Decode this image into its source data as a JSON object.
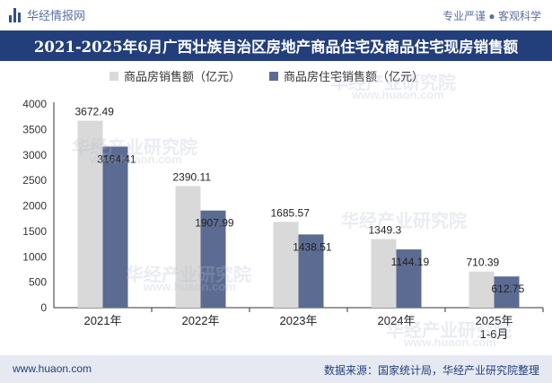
{
  "header": {
    "brand": "华经情报网",
    "slogan": "专业严谨 ● 客观科学",
    "title": "2021-2025年6月广西壮族自治区房地产商品住宅及商品住宅现房销售额"
  },
  "footer": {
    "url": "www.huaon.com",
    "source": "数据来源：国家统计局，华经产业研究院整理"
  },
  "watermark": {
    "cn": "华经产业研究院",
    "url": "www.huaon.com"
  },
  "colors": {
    "series1": "#d9d9d9",
    "series2": "#5b6b92",
    "accent": "#233f7b"
  },
  "chart_data": {
    "type": "bar",
    "categories": [
      "2021年",
      "2022年",
      "2023年",
      "2024年",
      "2025年\n1-6月"
    ],
    "series": [
      {
        "name": "商品房销售额（亿元）",
        "values": [
          3672.49,
          2390.11,
          1685.57,
          1349.3,
          710.39
        ]
      },
      {
        "name": "商品房住宅销售额（亿元）",
        "values": [
          3164.41,
          1907.99,
          1438.51,
          1144.19,
          612.75
        ]
      }
    ],
    "ylim": [
      0,
      4000
    ],
    "yticks": [
      0,
      500,
      1000,
      1500,
      2000,
      2500,
      3000,
      3500,
      4000
    ],
    "legend_position": "top",
    "grid": false
  }
}
